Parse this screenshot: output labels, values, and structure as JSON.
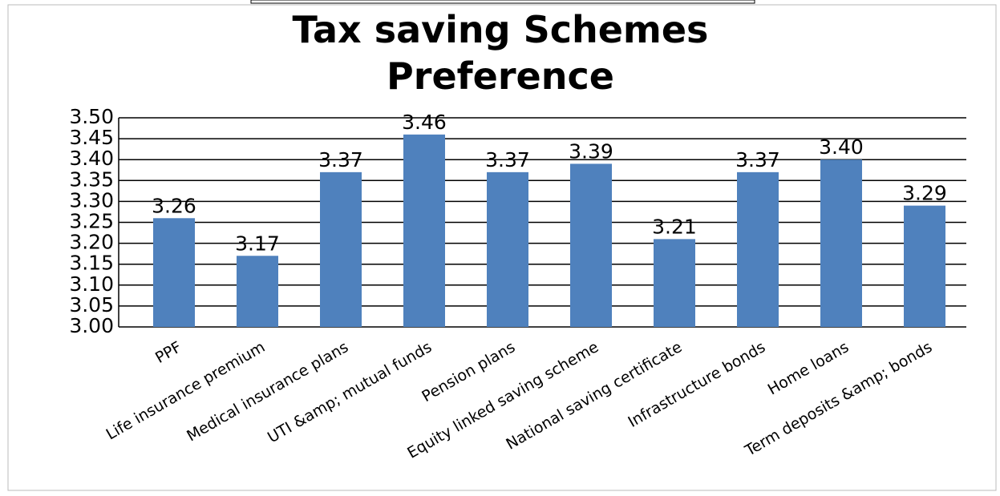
{
  "chart_data": {
    "type": "bar",
    "title": "Tax saving Schemes Preference",
    "categories": [
      "PPF",
      "Life insurance premium",
      "Medical insurance plans",
      "UTI &amp; mutual funds",
      "Pension plans",
      "Equity linked saving scheme",
      "National saving certificate",
      "Infrastructure bonds",
      "Home loans",
      "Term deposits &amp; bonds"
    ],
    "values": [
      3.26,
      3.17,
      3.37,
      3.46,
      3.37,
      3.39,
      3.21,
      3.37,
      3.4,
      3.29
    ],
    "value_labels": [
      "3.26",
      "3.17",
      "3.37",
      "3.46",
      "3.37",
      "3.39",
      "3.21",
      "3.37",
      "3.40",
      "3.29"
    ],
    "color": "#4f81bd",
    "ylim": [
      3.0,
      3.5
    ],
    "yticks": [
      {
        "value": 3.0,
        "label": "3.00"
      },
      3.05,
      {
        "value": 3.1,
        "label": "3.10"
      },
      3.15,
      {
        "value": 3.2,
        "label": "3.20"
      },
      3.25,
      {
        "value": 3.3,
        "label": "3.30"
      },
      3.35,
      {
        "value": 3.4,
        "label": "3.40"
      },
      3.45,
      {
        "value": 3.5,
        "label": "3.50"
      }
    ],
    "grid": true
  }
}
